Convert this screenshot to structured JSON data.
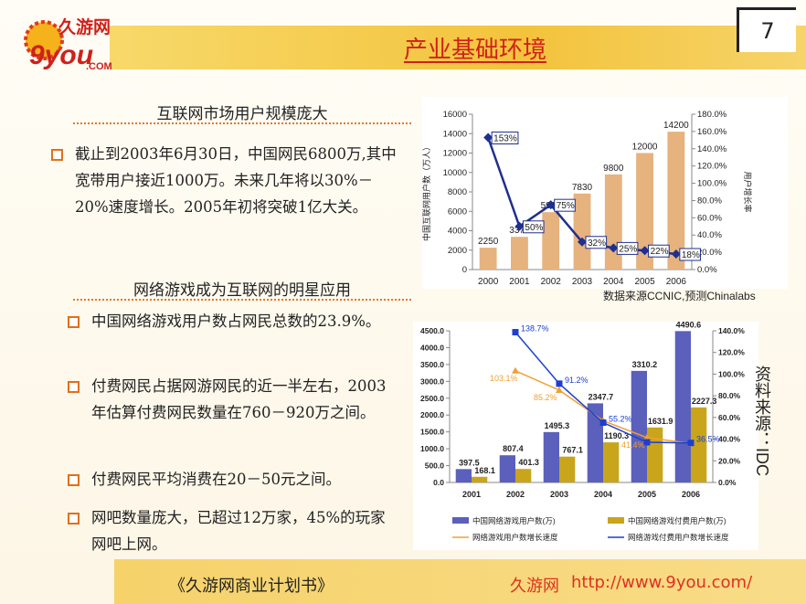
{
  "header": {
    "logo_cn": "久游网",
    "logo_en": "9you",
    "logo_com": ".COM",
    "title": "产业基础环境",
    "page_number": "7"
  },
  "sections": [
    {
      "heading": "互联网市场用户规模庞大",
      "bullets": [
        "截止到2003年6月30日，中国网民6800万,其中宽带用户接近1000万。未来几年将以30%－20%速度增长。2005年初将突破1亿大关。"
      ]
    },
    {
      "heading": "网络游戏成为互联网的明星应用",
      "bullets": [
        "中国网络游戏用户数占网民总数的23.9%。",
        "付费网民占据网游网民的近一半左右，2003年估算付费网民数量在760－920万之间。",
        "付费网民平均消费在20－50元之间。",
        "网吧数量庞大，已超过12万家，45%的玩家网吧上网。"
      ]
    }
  ],
  "chart_data": [
    {
      "type": "bar_line",
      "categories": [
        "2000",
        "2001",
        "2002",
        "2003",
        "2004",
        "2005",
        "2006"
      ],
      "series": [
        {
          "color": "#e6b27e",
          "values": [
            2250,
            3370,
            5910,
            7830,
            9800,
            12000,
            14200
          ]
        },
        {
          "color": "#1f2f8f",
          "axis": "y2",
          "values": [
            153,
            50,
            75,
            32,
            25,
            22,
            18
          ],
          "value_labels": [
            "153%",
            "50%",
            "75%",
            "32%",
            "25%",
            "22%",
            "18%"
          ]
        }
      ],
      "ylim": [
        0,
        16000
      ],
      "yticks": [
        0,
        2000,
        4000,
        6000,
        8000,
        10000,
        12000,
        14000,
        16000
      ],
      "y2lim": [
        0,
        180
      ],
      "y2ticks": [
        {
          "value": 0,
          "label": "0.0%"
        },
        {
          "value": 20,
          "label": "20.0%"
        },
        {
          "value": 40,
          "label": "40.0%"
        },
        {
          "value": 60,
          "label": "60.0%"
        },
        {
          "value": 80,
          "label": "80.0%"
        },
        {
          "value": 100,
          "label": "100.0%"
        },
        {
          "value": 120,
          "label": "120.0%"
        },
        {
          "value": 140,
          "label": "140.0%"
        },
        {
          "value": 160,
          "label": "160.0%"
        },
        {
          "value": 180,
          "label": "180.0%"
        }
      ],
      "ylabel": "中国互联网用户数（万人）",
      "y2label": "用户增长率",
      "source": "数据来源CCNIC,预测Chinalabs"
    },
    {
      "type": "bar_line",
      "categories": [
        "2001",
        "2002",
        "2003",
        "2004",
        "2005",
        "2006"
      ],
      "series": [
        {
          "name": "中国网络游戏用户数(万)",
          "color": "#5b60bc",
          "values": [
            397.5,
            807.4,
            1495.3,
            2347.7,
            3310.2,
            4490.6
          ]
        },
        {
          "name": "中国网络游戏付费用户数(万)",
          "color": "#c9a51c",
          "values": [
            168.1,
            401.3,
            767.1,
            1190.3,
            1631.9,
            2227.3
          ]
        },
        {
          "name": "网络游戏用户数增长速度",
          "color": "#f0a030",
          "axis": "y2",
          "values": [
            null,
            103.1,
            85.2,
            57.0,
            41.4,
            36.0
          ],
          "value_labels": [
            null,
            "103.1%",
            "85.2%",
            null,
            "41.4%",
            null
          ]
        },
        {
          "name": "网络游戏付费用户数增长速度",
          "color": "#1c3fd1",
          "axis": "y2",
          "values": [
            null,
            138.7,
            91.2,
            55.2,
            37.1,
            36.5
          ],
          "value_labels": [
            null,
            "138.7%",
            "91.2%",
            "55.2%",
            null,
            "36.5%"
          ]
        }
      ],
      "ylim": [
        0,
        4500
      ],
      "yticks": [
        {
          "value": 0,
          "label": "0.0"
        },
        {
          "value": 500,
          "label": "500.0"
        },
        {
          "value": 1000,
          "label": "1000.0"
        },
        {
          "value": 1500,
          "label": "1500.0"
        },
        {
          "value": 2000,
          "label": "2000.0"
        },
        {
          "value": 2500,
          "label": "2500.0"
        },
        {
          "value": 3000,
          "label": "3000.0"
        },
        {
          "value": 3500,
          "label": "3500.0"
        },
        {
          "value": 4000,
          "label": "4000.0"
        },
        {
          "value": 4500,
          "label": "4500.0"
        }
      ],
      "y2lim": [
        0,
        140
      ],
      "y2ticks": [
        {
          "value": 0,
          "label": "0.0%"
        },
        {
          "value": 20,
          "label": "20.0%"
        },
        {
          "value": 40,
          "label": "40.0%"
        },
        {
          "value": 60,
          "label": "60.0%"
        },
        {
          "value": 80,
          "label": "80.0%"
        },
        {
          "value": 100,
          "label": "100.0%"
        },
        {
          "value": 120,
          "label": "120.0%"
        },
        {
          "value": 140,
          "label": "140.0%"
        }
      ],
      "source": "资料来源：IDC"
    }
  ],
  "footer": {
    "doc": "《久游网商业计划书》",
    "brand": "久游网",
    "url": "http://www.9you.com/"
  }
}
